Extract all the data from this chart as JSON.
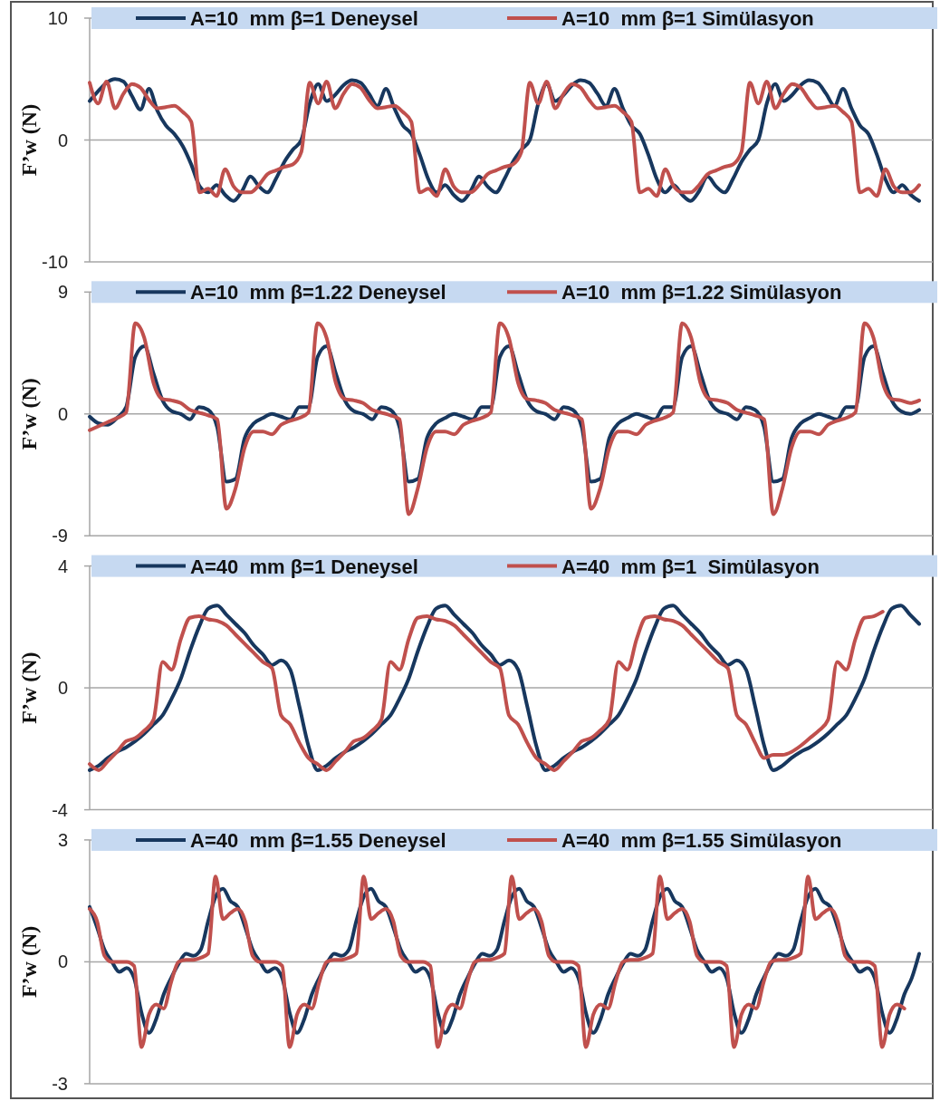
{
  "chart_data": [
    {
      "type": "line",
      "ylabel": "F’w (N)",
      "ylim": [
        -10,
        10
      ],
      "yticks": [
        10,
        0,
        -10
      ],
      "grid": "y",
      "legend": "top",
      "tick_labels": "y",
      "categories": [
        null,
        null,
        null,
        null,
        null,
        null,
        null,
        null,
        null,
        null,
        null,
        null,
        null,
        null,
        null,
        null,
        null,
        null,
        null,
        null,
        null,
        null,
        null,
        null,
        null,
        null,
        null,
        null,
        null,
        null,
        null,
        null,
        null,
        null,
        null,
        null,
        null,
        null,
        null,
        null,
        null,
        null,
        null,
        null,
        null,
        null,
        null,
        null,
        null,
        null,
        null,
        null,
        null,
        null,
        null,
        null,
        null,
        null,
        null,
        null,
        null,
        null,
        null,
        null,
        null,
        null,
        null,
        null,
        null,
        null,
        null,
        null,
        null,
        null,
        null,
        null,
        null,
        null,
        null,
        null,
        null,
        null,
        null,
        null,
        null,
        null,
        null,
        null,
        null,
        null,
        null,
        null,
        null,
        null,
        null,
        null,
        null,
        null,
        null
      ],
      "series": [
        {
          "name": "A=10  mm β=1 Deneysel",
          "color": "#17375e",
          "values": [
            3.2,
            4.0,
            4.7,
            5.0,
            4.8,
            3.6,
            2.5,
            4.2,
            2.4,
            1.2,
            0.5,
            -0.5,
            -2.0,
            -3.8,
            -4.3,
            -3.7,
            -4.5,
            -5.0,
            -4.2,
            -3.0,
            -3.8,
            -4.3,
            -3.2,
            -1.8,
            -0.8,
            0.0,
            3.0,
            4.6,
            3.2,
            3.7,
            4.5,
            4.9,
            4.7,
            3.8,
            2.8,
            4.2,
            2.6,
            1.2,
            0.5,
            -1.2,
            -3.2,
            -4.3,
            -3.7,
            -4.5,
            -5.0,
            -4.2,
            -3.0,
            -3.8,
            -4.3,
            -3.2,
            -1.8,
            -0.8,
            0.0,
            3.0,
            4.6,
            3.2,
            3.7,
            4.5,
            4.9,
            4.7,
            3.8,
            2.8,
            4.2,
            2.6,
            1.2,
            0.5,
            -1.2,
            -3.2,
            -4.3,
            -3.7,
            -4.5,
            -5.0,
            -4.2,
            -3.0,
            -3.8,
            -4.3,
            -3.2,
            -1.8,
            -0.8,
            0.0,
            3.0,
            4.6,
            3.2,
            3.7,
            4.5,
            4.9,
            4.7,
            3.8,
            2.8,
            4.2,
            2.6,
            1.2,
            0.5,
            -1.2,
            -3.2,
            -4.3,
            -3.7,
            -4.5,
            -5.0
          ]
        },
        {
          "name": "A=10  mm β=1 Simülasyon",
          "color": "#c0504d",
          "values": [
            4.7,
            3.0,
            4.8,
            2.6,
            3.8,
            4.6,
            4.3,
            3.3,
            2.6,
            2.7,
            2.8,
            2.3,
            1.5,
            -4.3,
            -4.0,
            -4.6,
            -2.4,
            -3.8,
            -4.3,
            -4.3,
            -3.7,
            -2.8,
            -2.5,
            -2.2,
            -2.0,
            -1.0,
            4.7,
            3.0,
            4.8,
            2.6,
            3.8,
            4.6,
            4.3,
            3.3,
            2.6,
            2.7,
            2.8,
            2.3,
            1.5,
            -4.3,
            -4.0,
            -4.6,
            -2.4,
            -3.8,
            -4.3,
            -4.3,
            -3.7,
            -2.8,
            -2.5,
            -2.2,
            -2.0,
            -1.0,
            4.7,
            3.0,
            4.8,
            2.6,
            3.8,
            4.6,
            4.3,
            3.3,
            2.6,
            2.7,
            2.8,
            2.3,
            1.5,
            -4.3,
            -4.0,
            -4.6,
            -2.4,
            -3.8,
            -4.3,
            -4.3,
            -3.7,
            -2.8,
            -2.5,
            -2.2,
            -2.0,
            -1.0,
            4.7,
            3.0,
            4.8,
            2.6,
            3.8,
            4.6,
            4.3,
            3.3,
            2.6,
            2.7,
            2.8,
            2.3,
            1.5,
            -4.3,
            -4.0,
            -4.6,
            -2.4,
            -3.8,
            -4.3,
            -4.3,
            -3.7
          ]
        }
      ]
    },
    {
      "type": "line",
      "ylabel": "F’w (N)",
      "ylim": [
        -9,
        9
      ],
      "yticks": [
        9,
        0,
        -9
      ],
      "grid": "y",
      "legend": "top",
      "tick_labels": "y",
      "categories": [
        null,
        null,
        null,
        null,
        null,
        null,
        null,
        null,
        null,
        null,
        null,
        null,
        null,
        null,
        null,
        null,
        null,
        null,
        null,
        null,
        null,
        null,
        null,
        null,
        null,
        null,
        null,
        null,
        null,
        null,
        null,
        null,
        null,
        null,
        null,
        null,
        null,
        null,
        null,
        null,
        null,
        null,
        null,
        null,
        null,
        null,
        null,
        null,
        null,
        null,
        null,
        null,
        null,
        null,
        null,
        null,
        null,
        null,
        null,
        null,
        null,
        null,
        null,
        null,
        null,
        null,
        null,
        null,
        null,
        null,
        null,
        null,
        null,
        null,
        null,
        null,
        null,
        null,
        null,
        null,
        null,
        null,
        null,
        null,
        null,
        null,
        null,
        null,
        null,
        null,
        null,
        null
      ],
      "series": [
        {
          "name": "A=10  mm β=1.22 Deneysel",
          "color": "#17375e",
          "values": [
            -0.2,
            -0.7,
            -0.8,
            -0.3,
            0.5,
            4.2,
            5.0,
            3.0,
            1.0,
            0.2,
            0.0,
            -0.4,
            0.5,
            0.3,
            -1.0,
            -5.0,
            -4.8,
            -1.8,
            -0.7,
            -0.3,
            0.0,
            -0.2,
            -0.4,
            0.5,
            0.5,
            4.2,
            5.0,
            3.0,
            1.0,
            0.2,
            0.0,
            -0.4,
            0.5,
            0.3,
            -1.0,
            -5.0,
            -4.8,
            -1.8,
            -0.7,
            -0.3,
            0.0,
            -0.2,
            -0.4,
            0.5,
            0.5,
            4.2,
            5.0,
            3.0,
            1.0,
            0.2,
            0.0,
            -0.4,
            0.5,
            0.3,
            -1.0,
            -5.0,
            -4.8,
            -1.8,
            -0.7,
            -0.3,
            0.0,
            -0.2,
            -0.4,
            0.5,
            0.5,
            4.2,
            5.0,
            3.0,
            1.0,
            0.2,
            0.0,
            -0.4,
            0.5,
            0.3,
            -1.0,
            -5.0,
            -4.8,
            -1.8,
            -0.7,
            -0.3,
            0.0,
            -0.2,
            -0.4,
            0.5,
            0.5,
            4.2,
            5.0,
            3.0,
            1.0,
            0.2,
            0.0,
            0.3
          ]
        },
        {
          "name": "A=10  mm β=1.22 Simülasyon",
          "color": "#c0504d",
          "values": [
            -1.2,
            -0.9,
            -0.6,
            -0.3,
            0.1,
            6.7,
            5.6,
            2.3,
            1.1,
            1.0,
            0.8,
            0.3,
            0.1,
            -0.1,
            -0.4,
            -7.0,
            -5.5,
            -2.5,
            -1.3,
            -1.3,
            -1.5,
            -0.8,
            -0.5,
            -0.3,
            0.1,
            6.7,
            5.6,
            2.3,
            1.1,
            1.0,
            0.8,
            0.3,
            0.1,
            -0.1,
            -0.4,
            -7.4,
            -5.5,
            -2.5,
            -1.3,
            -1.3,
            -1.5,
            -0.8,
            -0.5,
            -0.3,
            0.1,
            6.7,
            5.6,
            2.3,
            1.1,
            1.0,
            0.8,
            0.3,
            0.1,
            -0.1,
            -0.4,
            -7.0,
            -5.5,
            -2.5,
            -1.3,
            -1.3,
            -1.5,
            -0.8,
            -0.5,
            -0.3,
            0.1,
            6.7,
            5.6,
            2.3,
            1.1,
            1.0,
            0.8,
            0.3,
            0.1,
            -0.1,
            -0.4,
            -7.4,
            -5.5,
            -2.5,
            -1.3,
            -1.3,
            -1.5,
            -0.8,
            -0.5,
            -0.3,
            0.1,
            6.7,
            5.6,
            2.3,
            1.1,
            1.0,
            0.8,
            1.0
          ]
        }
      ]
    },
    {
      "type": "line",
      "ylabel": "F’w (N)",
      "ylim": [
        -4,
        4
      ],
      "yticks": [
        4,
        0,
        -4
      ],
      "grid": "y",
      "legend": "top",
      "tick_labels": "y",
      "categories": [
        null,
        null,
        null,
        null,
        null,
        null,
        null,
        null,
        null,
        null,
        null,
        null,
        null,
        null,
        null,
        null,
        null,
        null,
        null,
        null,
        null,
        null,
        null,
        null,
        null,
        null,
        null,
        null,
        null,
        null,
        null,
        null,
        null,
        null,
        null,
        null,
        null,
        null,
        null,
        null,
        null,
        null,
        null,
        null,
        null,
        null,
        null,
        null,
        null,
        null,
        null,
        null,
        null,
        null,
        null,
        null,
        null,
        null,
        null,
        null,
        null,
        null,
        null,
        null,
        null,
        null,
        null,
        null,
        null,
        null,
        null,
        null,
        null,
        null,
        null,
        null,
        null,
        null,
        null,
        null,
        null,
        null,
        null,
        null,
        null,
        null,
        null,
        null,
        null,
        null,
        null,
        null
      ],
      "series": [
        {
          "name": "A=40  mm β=1 Deneysel",
          "color": "#17375e",
          "values": [
            -2.7,
            -2.55,
            -2.3,
            -2.1,
            -1.95,
            -1.75,
            -1.5,
            -1.2,
            -0.9,
            -0.35,
            0.3,
            1.2,
            2.0,
            2.6,
            2.7,
            2.4,
            2.1,
            1.8,
            1.4,
            1.1,
            0.75,
            0.9,
            0.6,
            -0.6,
            -1.9,
            -2.7,
            -2.55,
            -2.3,
            -2.1,
            -1.95,
            -1.75,
            -1.5,
            -1.2,
            -0.9,
            -0.35,
            0.3,
            1.2,
            2.0,
            2.6,
            2.7,
            2.4,
            2.1,
            1.8,
            1.4,
            1.1,
            0.75,
            0.9,
            0.6,
            -0.6,
            -1.9,
            -2.7,
            -2.55,
            -2.3,
            -2.1,
            -1.95,
            -1.75,
            -1.5,
            -1.2,
            -0.9,
            -0.35,
            0.3,
            1.2,
            2.0,
            2.6,
            2.7,
            2.4,
            2.1,
            1.8,
            1.4,
            1.1,
            0.75,
            0.9,
            0.6,
            -0.6,
            -1.9,
            -2.7,
            -2.55,
            -2.3,
            -2.1,
            -1.95,
            -1.75,
            -1.5,
            -1.2,
            -0.9,
            -0.35,
            0.3,
            1.2,
            2.0,
            2.6,
            2.7,
            2.4,
            2.1
          ]
        },
        {
          "name": "A=40  mm β=1  Simülasyon",
          "color": "#c0504d",
          "values": [
            -2.5,
            -2.7,
            -2.4,
            -2.1,
            -1.75,
            -1.65,
            -1.4,
            -1.05,
            0.85,
            0.6,
            1.6,
            2.3,
            2.35,
            2.25,
            2.2,
            2.05,
            1.75,
            1.45,
            1.15,
            0.85,
            0.65,
            -0.9,
            -1.2,
            -1.8,
            -2.3,
            -2.5,
            -2.7,
            -2.4,
            -2.1,
            -1.75,
            -1.65,
            -1.4,
            -1.05,
            0.85,
            0.6,
            1.6,
            2.3,
            2.35,
            2.25,
            2.2,
            2.05,
            1.75,
            1.45,
            1.15,
            0.85,
            0.65,
            -0.9,
            -1.2,
            -1.8,
            -2.3,
            -2.5,
            -2.7,
            -2.4,
            -2.1,
            -1.75,
            -1.65,
            -1.4,
            -1.05,
            0.85,
            0.6,
            1.6,
            2.3,
            2.35,
            2.25,
            2.2,
            2.05,
            1.75,
            1.45,
            1.15,
            0.85,
            0.65,
            -0.9,
            -1.2,
            -1.8,
            -2.3,
            -2.2,
            -2.2,
            -2.1,
            -1.9,
            -1.65,
            -1.4,
            -1.05,
            0.85,
            0.6,
            1.6,
            2.3,
            2.35,
            2.5,
            null,
            null,
            null,
            null
          ]
        }
      ]
    },
    {
      "type": "line",
      "ylabel": "F’w (N)",
      "ylim": [
        -3,
        3
      ],
      "yticks": [
        3,
        0,
        -3
      ],
      "grid": "y",
      "legend": "top",
      "tick_labels": "y",
      "categories": [
        null,
        null,
        null,
        null,
        null,
        null,
        null,
        null,
        null,
        null,
        null,
        null,
        null,
        null,
        null,
        null,
        null,
        null,
        null,
        null,
        null,
        null,
        null,
        null,
        null,
        null,
        null,
        null,
        null,
        null,
        null,
        null,
        null,
        null,
        null,
        null,
        null,
        null,
        null,
        null,
        null,
        null,
        null,
        null,
        null,
        null,
        null,
        null,
        null,
        null,
        null,
        null,
        null,
        null,
        null,
        null,
        null,
        null,
        null,
        null,
        null,
        null,
        null,
        null,
        null,
        null,
        null,
        null,
        null,
        null,
        null,
        null,
        null,
        null,
        null,
        null,
        null,
        null,
        null,
        null,
        null,
        null,
        null,
        null,
        null,
        null,
        null,
        null,
        null,
        null,
        null,
        null,
        null,
        null,
        null,
        null,
        null,
        null,
        null,
        null,
        null,
        null,
        null,
        null,
        null,
        null,
        null,
        null,
        null,
        null,
        null,
        null,
        null
      ],
      "series": [
        {
          "name": "A=40  mm β=1.55 Deneysel",
          "color": "#17375e",
          "values": [
            1.35,
            0.85,
            0.3,
            0.0,
            -0.25,
            -0.15,
            -0.4,
            -1.25,
            -1.75,
            -1.4,
            -0.8,
            -0.4,
            -0.05,
            0.2,
            0.15,
            0.3,
            1.0,
            1.6,
            1.8,
            1.5,
            1.35,
            0.85,
            0.3,
            0.0,
            -0.25,
            -0.15,
            -0.4,
            -1.25,
            -1.75,
            -1.4,
            -0.8,
            -0.4,
            -0.05,
            0.2,
            0.15,
            0.3,
            1.0,
            1.6,
            1.8,
            1.5,
            1.35,
            0.85,
            0.3,
            0.0,
            -0.25,
            -0.15,
            -0.4,
            -1.25,
            -1.75,
            -1.4,
            -0.8,
            -0.4,
            -0.05,
            0.2,
            0.15,
            0.3,
            1.0,
            1.6,
            1.8,
            1.5,
            1.35,
            0.85,
            0.3,
            0.0,
            -0.25,
            -0.15,
            -0.4,
            -1.25,
            -1.75,
            -1.4,
            -0.8,
            -0.4,
            -0.05,
            0.2,
            0.15,
            0.3,
            1.0,
            1.6,
            1.8,
            1.5,
            1.35,
            0.85,
            0.3,
            0.0,
            -0.25,
            -0.15,
            -0.4,
            -1.25,
            -1.75,
            -1.4,
            -0.8,
            -0.4,
            -0.05,
            0.2,
            0.15,
            0.3,
            1.0,
            1.6,
            1.8,
            1.5,
            1.35,
            0.85,
            0.3,
            0.0,
            -0.25,
            -0.15,
            -0.4,
            -1.25,
            -1.75,
            -1.4,
            -0.8,
            -0.4,
            0.2
          ]
        },
        {
          "name": "A=40  mm β=1.55 Simülasyon",
          "color": "#c0504d",
          "values": [
            1.3,
            1.0,
            0.15,
            0.0,
            0.0,
            0.0,
            -0.1,
            -2.1,
            -1.3,
            -1.05,
            -1.15,
            -0.5,
            0.0,
            0.05,
            0.05,
            0.1,
            0.2,
            2.1,
            1.05,
            1.2,
            1.3,
            1.0,
            0.15,
            0.0,
            0.0,
            0.0,
            -0.1,
            -2.1,
            -1.3,
            -1.05,
            -1.15,
            -0.5,
            0.0,
            0.05,
            0.05,
            0.1,
            0.2,
            2.1,
            1.05,
            1.2,
            1.3,
            1.0,
            0.15,
            0.0,
            0.0,
            0.0,
            -0.1,
            -2.1,
            -1.3,
            -1.05,
            -1.15,
            -0.5,
            0.0,
            0.05,
            0.05,
            0.1,
            0.2,
            2.1,
            1.05,
            1.2,
            1.3,
            1.0,
            0.15,
            0.0,
            0.0,
            0.0,
            -0.1,
            -2.1,
            -1.3,
            -1.05,
            -1.15,
            -0.5,
            0.0,
            0.05,
            0.05,
            0.1,
            0.2,
            2.1,
            1.05,
            1.2,
            1.3,
            1.0,
            0.15,
            0.0,
            0.0,
            0.0,
            -0.1,
            -2.1,
            -1.3,
            -1.05,
            -1.15,
            -0.5,
            0.0,
            0.05,
            0.05,
            0.1,
            0.2,
            2.1,
            1.05,
            1.2,
            1.3,
            1.0,
            0.15,
            0.0,
            0.0,
            0.0,
            -0.1,
            -2.1,
            -1.3,
            -1.05,
            -1.15,
            null,
            null
          ]
        }
      ]
    }
  ]
}
